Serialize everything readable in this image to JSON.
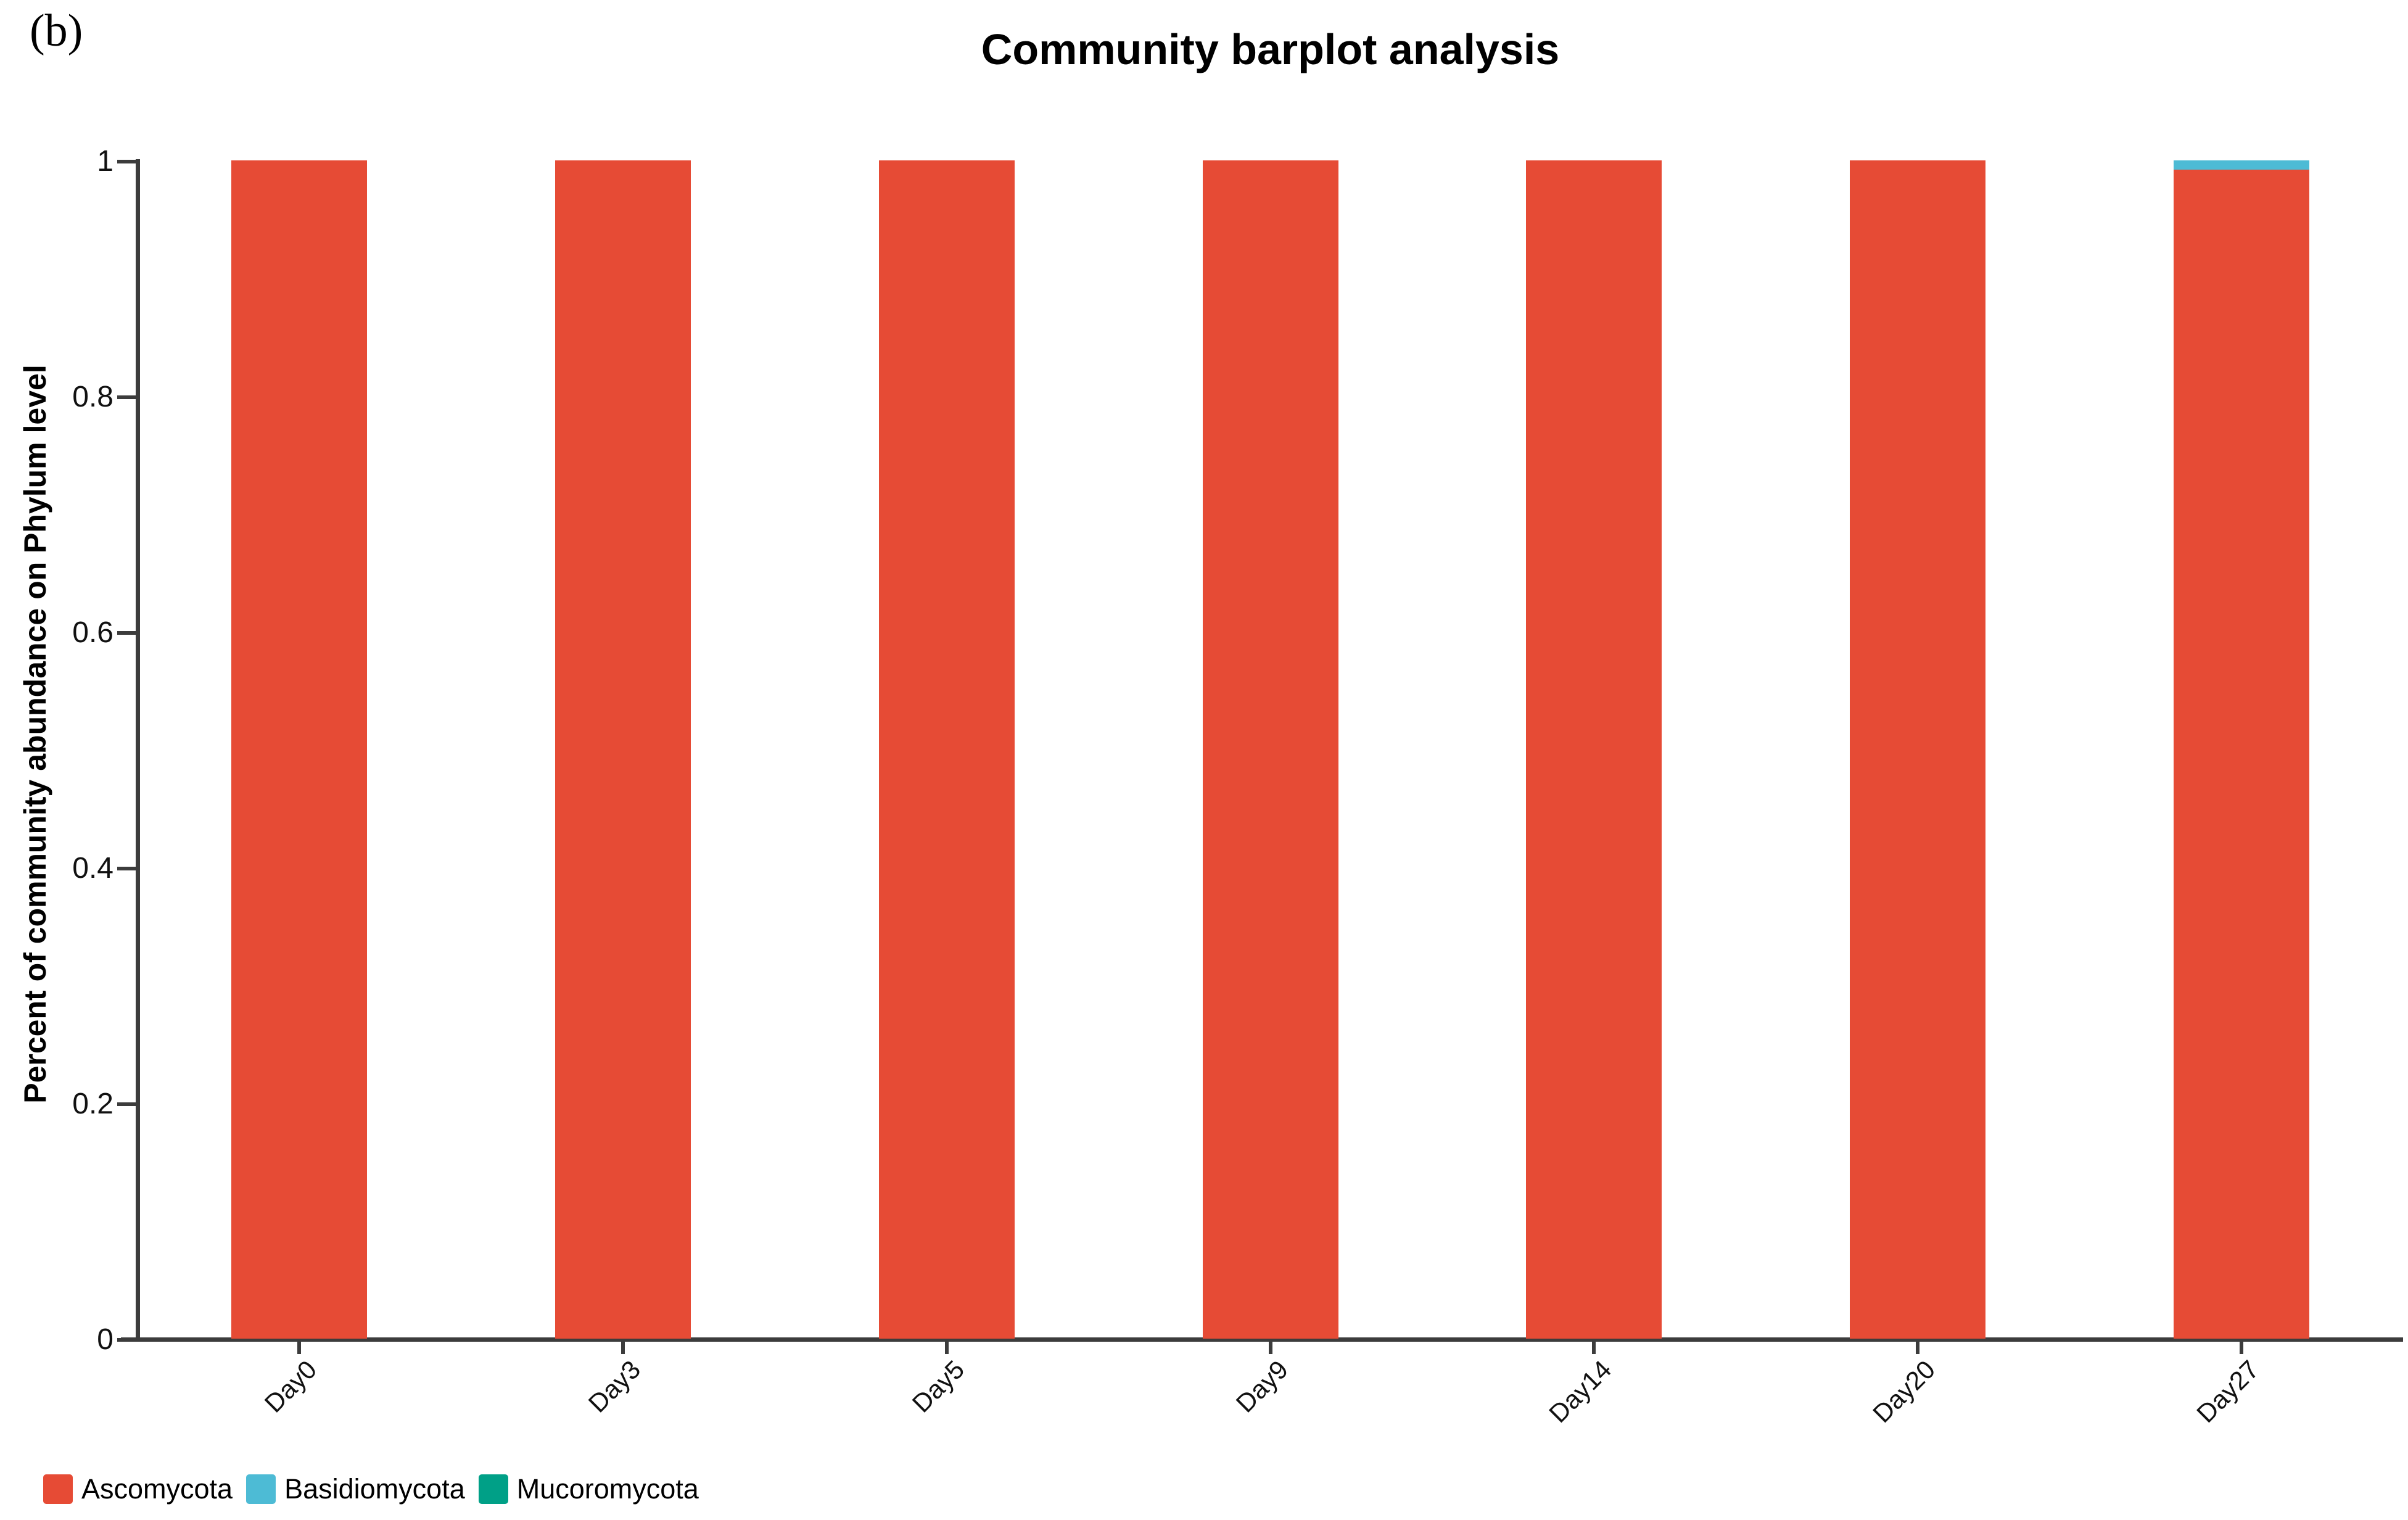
{
  "panel_label": "(b)",
  "colors": {
    "axis": "#3C3C3C",
    "text": "#000000",
    "background": "#FFFFFF",
    "ascomycota": "#E64B35",
    "basidiomycota": "#4DBBD5",
    "mucoromycota": "#00A087"
  },
  "chart_data": {
    "type": "bar",
    "stacked": true,
    "title": "Community barplot analysis",
    "xlabel": "",
    "ylabel": "Percent of community abundance on Phylum level",
    "categories": [
      "Day0",
      "Day3",
      "Day5",
      "Day9",
      "Day14",
      "Day20",
      "Day27"
    ],
    "series": [
      {
        "name": "Ascomycota",
        "color": "#E64B35",
        "values": [
          1,
          1,
          1,
          1,
          1,
          1,
          0.992
        ]
      },
      {
        "name": "Basidiomycota",
        "color": "#4DBBD5",
        "values": [
          0,
          0,
          0,
          0,
          0,
          0,
          0.008
        ]
      },
      {
        "name": "Mucoromycota",
        "color": "#00A087",
        "values": [
          0,
          0,
          0,
          0,
          0,
          0,
          0
        ]
      }
    ],
    "ylim": [
      0,
      1
    ],
    "y_ticks": [
      "0",
      "0.2",
      "0.4",
      "0.6",
      "0.8",
      "1"
    ],
    "x_tick_label_rotation_deg": -45,
    "grid": false,
    "legend_position": "bottom-left"
  }
}
